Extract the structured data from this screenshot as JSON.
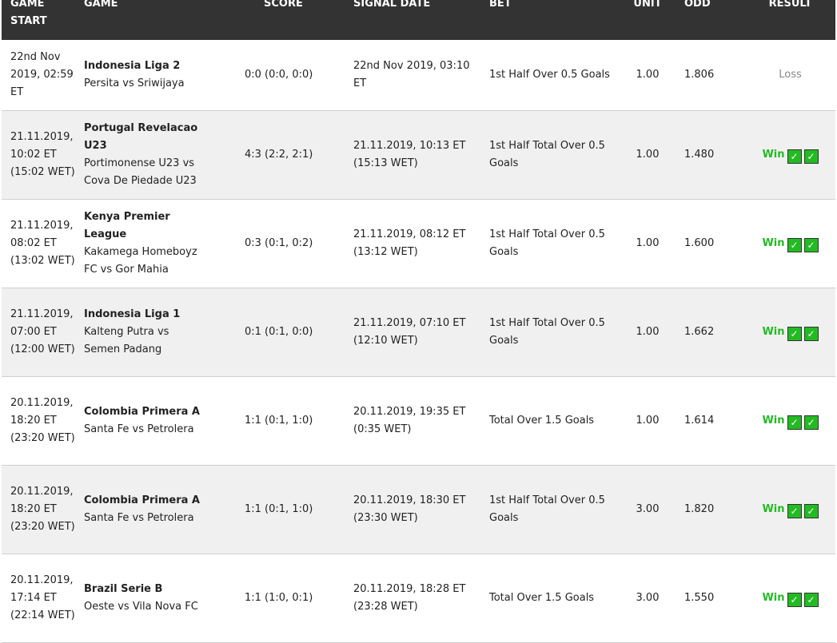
{
  "headers": {
    "start": "GAME START",
    "game": "GAME",
    "score": "SCORE",
    "signal": "SIGNAL DATE",
    "bet": "BET",
    "unit": "UNIT",
    "odd": "ODD",
    "result": "RESULT"
  },
  "colors": {
    "header_bg": "#333333",
    "win": "#22bb22",
    "loss": "#888888",
    "alt_row": "#f0f0f0"
  },
  "rows": [
    {
      "start": "22nd Nov 2019, 02:59 ET",
      "league": "Indonesia Liga 2",
      "match": "Persita vs Sriwijaya",
      "score": "0:0 (0:0, 0:0)",
      "signal": "22nd Nov 2019, 03:10 ET",
      "bet": "1st Half Over 0.5 Goals",
      "unit": "1.00",
      "odd": "1.806",
      "result": "Loss"
    },
    {
      "start": "21.11.2019, 10:02 ET (15:02 WET)",
      "league": "Portugal Revelacao U23",
      "match": "Portimonense U23 vs Cova De Piedade U23",
      "score": "4:3 (2:2, 2:1)",
      "signal": "21.11.2019, 10:13 ET (15:13 WET)",
      "bet": "1st Half Total Over 0.5 Goals",
      "unit": "1.00",
      "odd": "1.480",
      "result": "Win"
    },
    {
      "start": "21.11.2019, 08:02 ET (13:02 WET)",
      "league": "Kenya Premier League",
      "match": "Kakamega Homeboyz FC vs Gor Mahia",
      "score": "0:3 (0:1, 0:2)",
      "signal": "21.11.2019, 08:12 ET (13:12 WET)",
      "bet": "1st Half Total Over 0.5 Goals",
      "unit": "1.00",
      "odd": "1.600",
      "result": "Win"
    },
    {
      "start": "21.11.2019, 07:00 ET (12:00 WET)",
      "league": "Indonesia Liga 1",
      "match": "Kalteng Putra vs Semen Padang",
      "score": "0:1 (0:1, 0:0)",
      "signal": "21.11.2019, 07:10 ET (12:10 WET)",
      "bet": "1st Half Total Over 0.5 Goals",
      "unit": "1.00",
      "odd": "1.662",
      "result": "Win"
    },
    {
      "start": "20.11.2019, 18:20 ET (23:20 WET)",
      "league": "Colombia Primera A",
      "match": "Santa Fe vs Petrolera",
      "score": "1:1 (0:1, 1:0)",
      "signal": "20.11.2019, 19:35 ET (0:35 WET)",
      "bet": "Total Over 1.5 Goals",
      "unit": "1.00",
      "odd": "1.614",
      "result": "Win"
    },
    {
      "start": "20.11.2019, 18:20 ET (23:20 WET)",
      "league": "Colombia Primera A",
      "match": "Santa Fe vs Petrolera",
      "score": "1:1 (0:1, 1:0)",
      "signal": "20.11.2019, 18:30 ET (23:30 WET)",
      "bet": "1st Half Total Over 0.5 Goals",
      "unit": "3.00",
      "odd": "1.820",
      "result": "Win"
    },
    {
      "start": "20.11.2019, 17:14 ET (22:14 WET)",
      "league": "Brazil Serie B",
      "match": "Oeste vs Vila Nova FC",
      "score": "1:1 (1:0, 0:1)",
      "signal": "20.11.2019, 18:28 ET (23:28 WET)",
      "bet": "Total Over 1.5 Goals",
      "unit": "3.00",
      "odd": "1.550",
      "result": "Win"
    }
  ]
}
